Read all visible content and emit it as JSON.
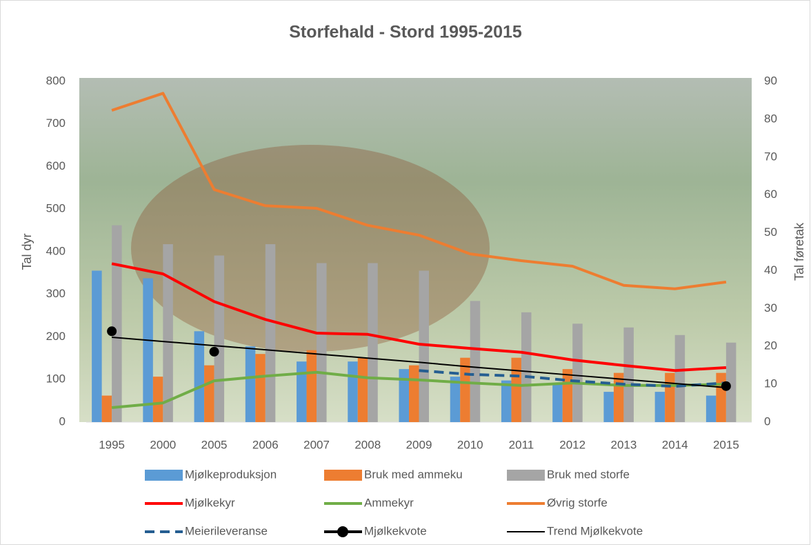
{
  "chart_data": {
    "type": "bar",
    "title": "Storfehald - Stord 1995-2015",
    "ylabel": "Tal dyr",
    "y2label": "Tal føretak",
    "categories": [
      "1995",
      "2000",
      "2005",
      "2006",
      "2007",
      "2008",
      "2009",
      "2010",
      "2011",
      "2012",
      "2013",
      "2014",
      "2015"
    ],
    "ylim": [
      0,
      800
    ],
    "yticks": [
      0,
      100,
      200,
      300,
      400,
      500,
      600,
      700,
      800
    ],
    "y2lim": [
      0,
      90
    ],
    "y2ticks": [
      0,
      10,
      20,
      30,
      40,
      50,
      60,
      70,
      80,
      90
    ],
    "legend": "bottom",
    "series": [
      {
        "name": "Mjølkeproduksjon",
        "type": "bar",
        "axis": "y2",
        "color": "#5b9bd5",
        "values": [
          40,
          38,
          24,
          20,
          16,
          16,
          14,
          12,
          11,
          10,
          8,
          8,
          7
        ]
      },
      {
        "name": "Bruk med ammeku",
        "type": "bar",
        "axis": "y2",
        "color": "#ed7d31",
        "values": [
          7,
          12,
          15,
          18,
          19,
          17,
          15,
          17,
          17,
          14,
          13,
          13,
          13
        ]
      },
      {
        "name": "Bruk med storfe",
        "type": "bar",
        "axis": "y2",
        "color": "#a5a5a5",
        "values": [
          52,
          47,
          44,
          47,
          42,
          42,
          40,
          32,
          29,
          26,
          25,
          23,
          21
        ]
      },
      {
        "name": "Mjølkekyr",
        "type": "line",
        "color": "#ff0000",
        "values": [
          372,
          348,
          283,
          241,
          209,
          206,
          183,
          173,
          164,
          146,
          133,
          121,
          128
        ]
      },
      {
        "name": "Ammekyr",
        "type": "line",
        "color": "#70ad47",
        "values": [
          34,
          45,
          97,
          108,
          117,
          104,
          99,
          92,
          86,
          92,
          86,
          86,
          89
        ]
      },
      {
        "name": "Øvrig storfe",
        "type": "line",
        "color": "#ed7d31",
        "values": [
          732,
          772,
          546,
          508,
          502,
          462,
          439,
          395,
          379,
          366,
          321,
          313,
          329
        ]
      },
      {
        "name": "Meierileveranse",
        "type": "line",
        "dash": true,
        "color": "#255e91",
        "values": [
          null,
          null,
          null,
          null,
          null,
          null,
          121,
          112,
          108,
          97,
          89,
          84,
          92
        ]
      },
      {
        "name": "Mjølkekvote",
        "type": "line",
        "marker": true,
        "axis": "y2",
        "color": "#000000",
        "values": [
          24,
          null,
          18.6,
          null,
          null,
          null,
          null,
          null,
          null,
          null,
          null,
          null,
          9.5
        ]
      },
      {
        "name": "Trend Mjølkekvote",
        "type": "line",
        "thin": true,
        "axis": "y2",
        "color": "#000000",
        "values": [
          22.4,
          21.3,
          20.2,
          19.1,
          18.0,
          16.9,
          15.8,
          14.6,
          13.5,
          12.4,
          11.3,
          10.2,
          9.1
        ]
      }
    ]
  }
}
